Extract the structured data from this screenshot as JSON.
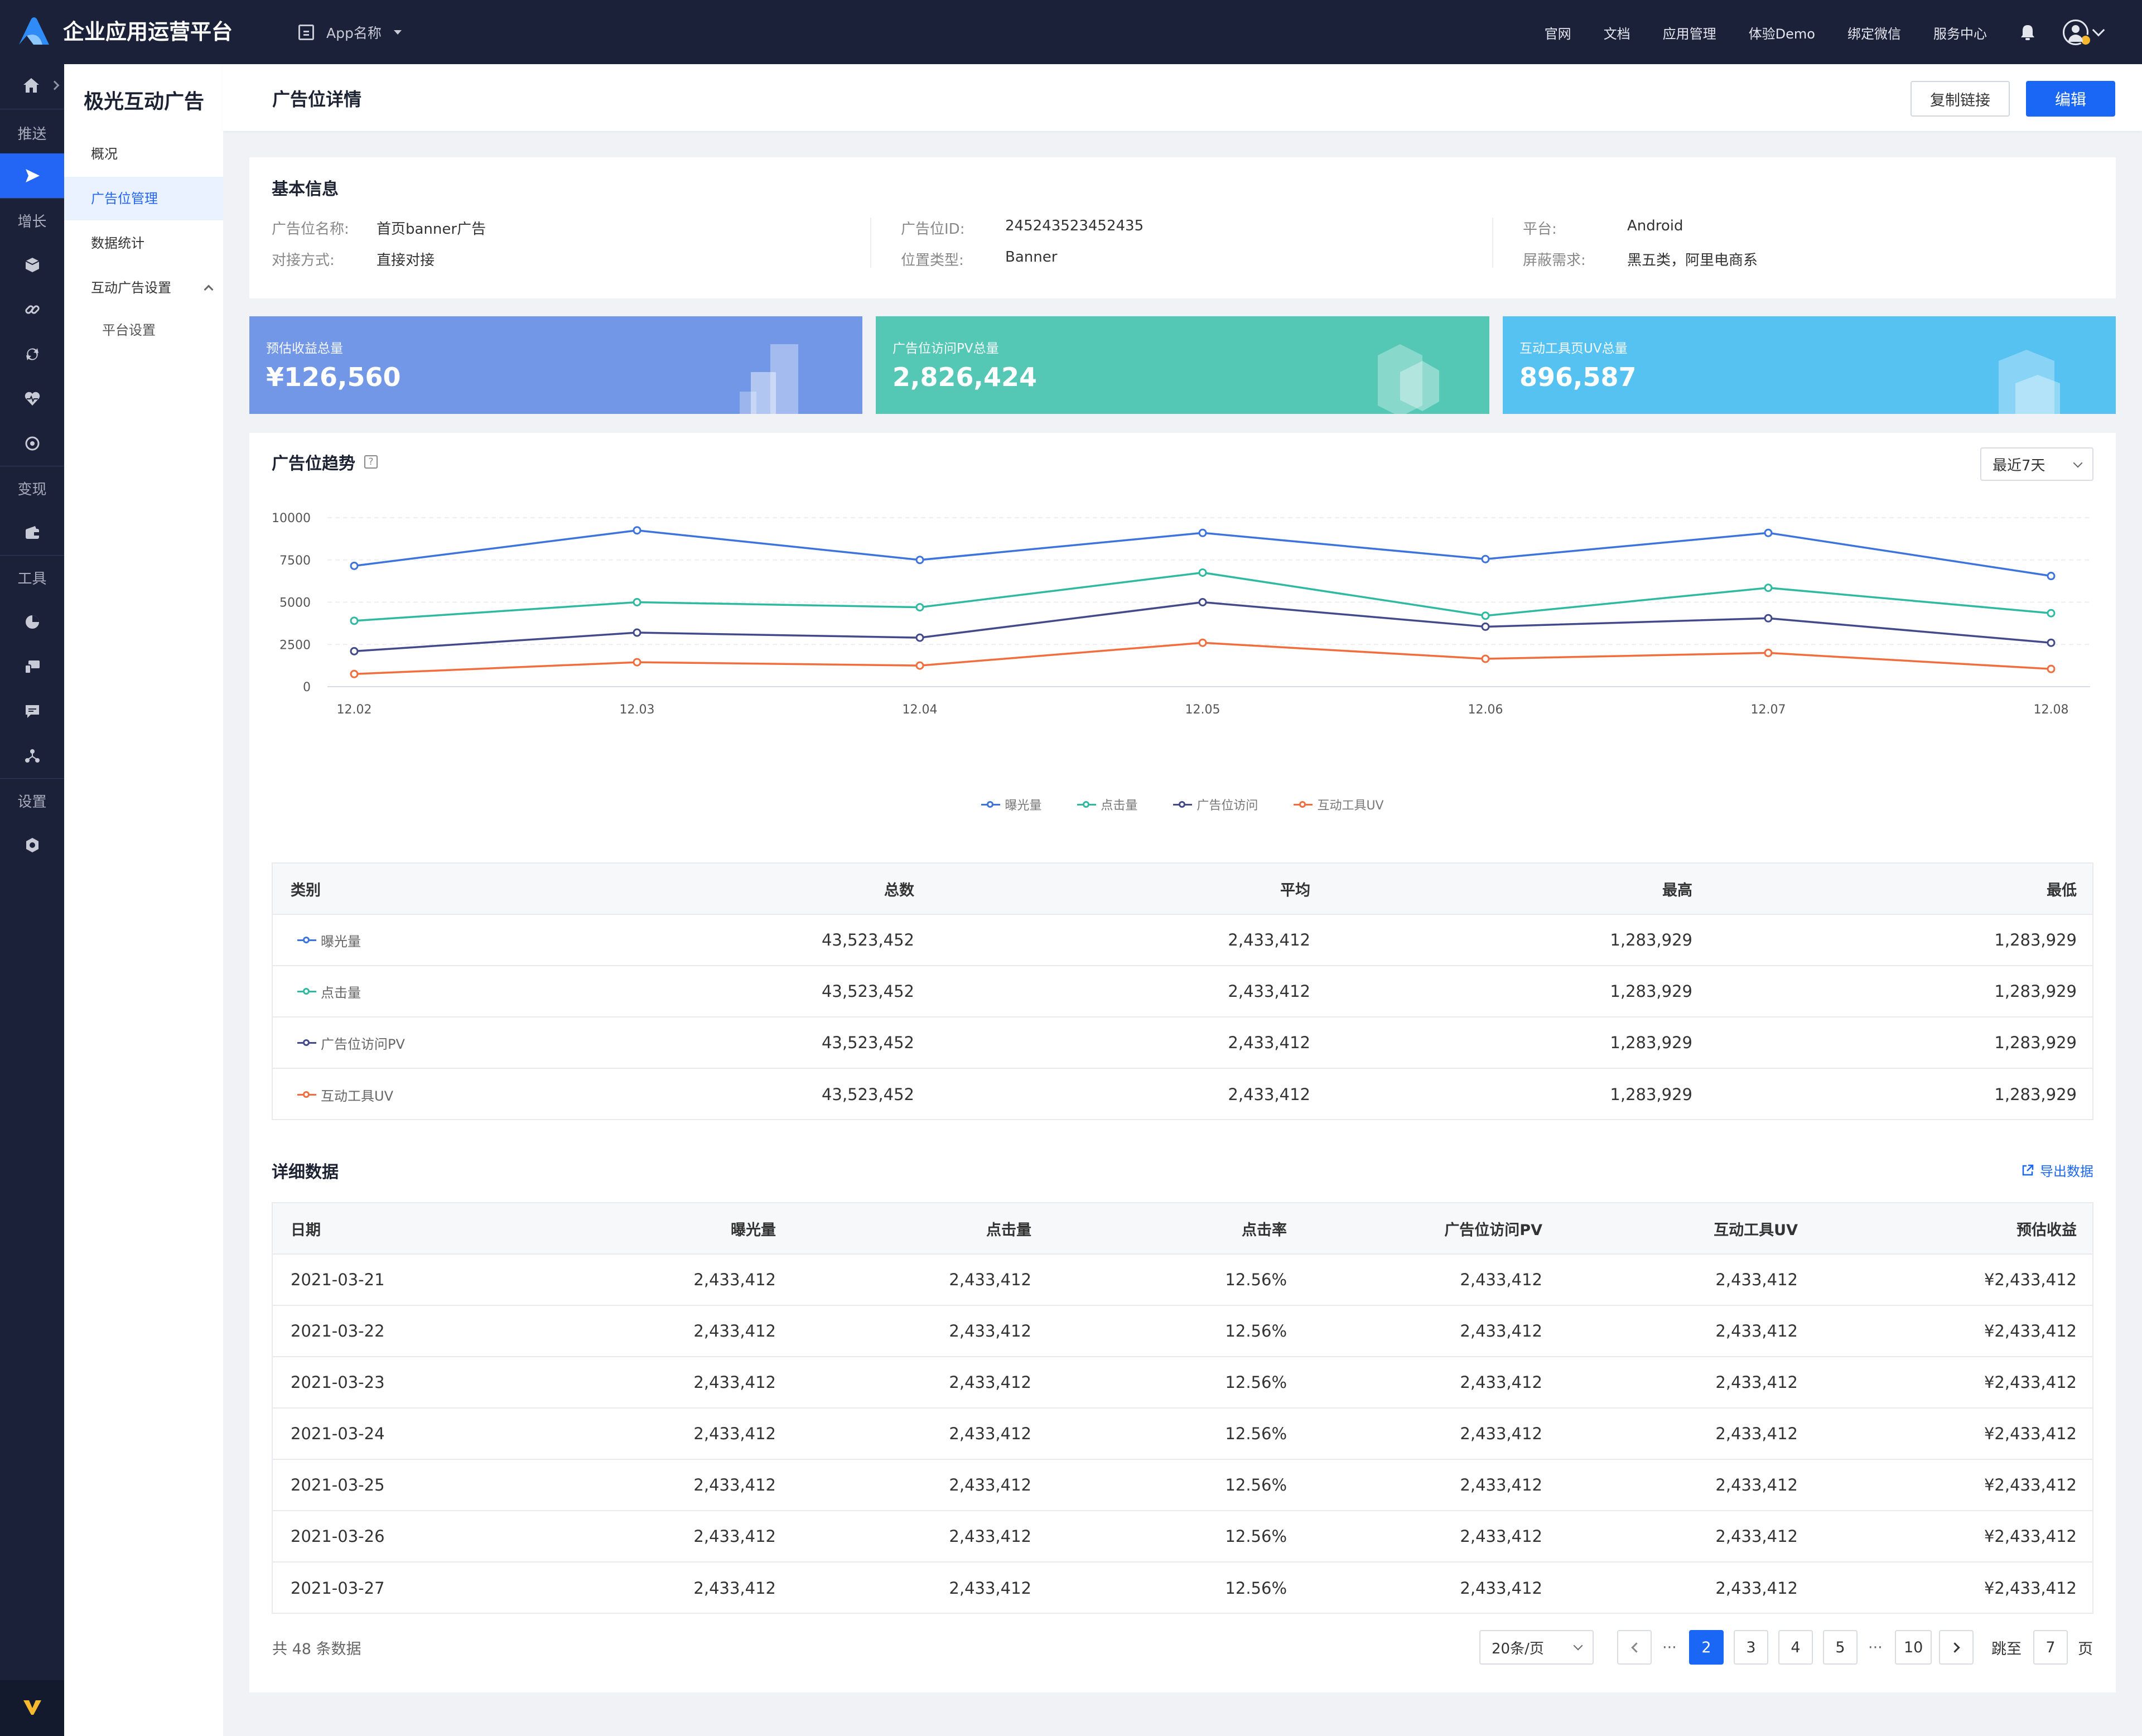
{
  "header": {
    "app_title": "企业应用运营平台",
    "app_switcher_label": "App名称",
    "nav": [
      "官网",
      "文档",
      "应用管理",
      "体验Demo",
      "绑定微信",
      "服务中心"
    ]
  },
  "rail": {
    "groups": [
      "推送",
      "增长",
      "变现",
      "工具",
      "设置"
    ]
  },
  "sidebar": {
    "title": "极光互动广告",
    "items": [
      {
        "label": "概况"
      },
      {
        "label": "广告位管理"
      },
      {
        "label": "数据统计"
      },
      {
        "label": "互动广告设置"
      },
      {
        "label": "平台设置"
      }
    ]
  },
  "page": {
    "title": "广告位详情",
    "copy_link_label": "复制链接",
    "edit_label": "编辑"
  },
  "basic_info": {
    "title": "基本信息",
    "fields": [
      {
        "label": "广告位名称:",
        "value": "首页banner广告"
      },
      {
        "label": "对接方式:",
        "value": "直接对接"
      },
      {
        "label": "广告位ID:",
        "value": "245243523452435"
      },
      {
        "label": "位置类型:",
        "value": "Banner"
      },
      {
        "label": "平台:",
        "value": "Android"
      },
      {
        "label": "屏蔽需求:",
        "value": "黑五类，阿里电商系"
      }
    ]
  },
  "stats": [
    {
      "label": "预估收益总量",
      "value": "¥126,560",
      "color": "#7297e6"
    },
    {
      "label": "广告位访问PV总量",
      "value": "2,826,424",
      "color": "#55c7b5"
    },
    {
      "label": "互动工具页UV总量",
      "value": "896,587",
      "color": "#56c2f2"
    }
  ],
  "trend": {
    "title": "广告位趋势",
    "range_label": "最近7天"
  },
  "chart_data": {
    "type": "line",
    "x": [
      "12.02",
      "12.03",
      "12.04",
      "12.05",
      "12.06",
      "12.07",
      "12.08"
    ],
    "ylim": [
      0,
      10000
    ],
    "yticks": [
      "10000",
      "7500",
      "5000",
      "2500",
      "0"
    ],
    "grid": true,
    "legend_position": "bottom-center",
    "series": [
      {
        "name": "曝光量",
        "color": "#3c73dc",
        "values": [
          7150,
          9250,
          7500,
          9100,
          7550,
          9100,
          6550
        ]
      },
      {
        "name": "点击量",
        "color": "#2fb9a0",
        "values": [
          3900,
          5000,
          4700,
          6750,
          4200,
          5850,
          4350
        ]
      },
      {
        "name": "广告位访问",
        "color": "#424a8c",
        "values": [
          2100,
          3200,
          2900,
          5000,
          3550,
          4050,
          2600
        ]
      },
      {
        "name": "互动工具UV",
        "color": "#f26d3d",
        "values": [
          750,
          1450,
          1250,
          2600,
          1650,
          2000,
          1050
        ]
      }
    ]
  },
  "summary_table": {
    "headers": [
      "类别",
      "总数",
      "平均",
      "最高",
      "最低"
    ],
    "rows": [
      {
        "category": "曝光量",
        "total": "43,523,452",
        "avg": "2,433,412",
        "max": "1,283,929",
        "min": "1,283,929",
        "color": "#3c73dc"
      },
      {
        "category": "点击量",
        "total": "43,523,452",
        "avg": "2,433,412",
        "max": "1,283,929",
        "min": "1,283,929",
        "color": "#2fb9a0"
      },
      {
        "category": "广告位访问PV",
        "total": "43,523,452",
        "avg": "2,433,412",
        "max": "1,283,929",
        "min": "1,283,929",
        "color": "#424a8c"
      },
      {
        "category": "互动工具UV",
        "total": "43,523,452",
        "avg": "2,433,412",
        "max": "1,283,929",
        "min": "1,283,929",
        "color": "#f26d3d"
      }
    ]
  },
  "detail": {
    "title": "详细数据",
    "export_label": "导出数据",
    "headers": [
      "日期",
      "曝光量",
      "点击量",
      "点击率",
      "广告位访问PV",
      "互动工具UV",
      "预估收益"
    ],
    "rows": [
      [
        "2021-03-21",
        "2,433,412",
        "2,433,412",
        "12.56%",
        "2,433,412",
        "2,433,412",
        "¥2,433,412"
      ],
      [
        "2021-03-22",
        "2,433,412",
        "2,433,412",
        "12.56%",
        "2,433,412",
        "2,433,412",
        "¥2,433,412"
      ],
      [
        "2021-03-23",
        "2,433,412",
        "2,433,412",
        "12.56%",
        "2,433,412",
        "2,433,412",
        "¥2,433,412"
      ],
      [
        "2021-03-24",
        "2,433,412",
        "2,433,412",
        "12.56%",
        "2,433,412",
        "2,433,412",
        "¥2,433,412"
      ],
      [
        "2021-03-25",
        "2,433,412",
        "2,433,412",
        "12.56%",
        "2,433,412",
        "2,433,412",
        "¥2,433,412"
      ],
      [
        "2021-03-26",
        "2,433,412",
        "2,433,412",
        "12.56%",
        "2,433,412",
        "2,433,412",
        "¥2,433,412"
      ],
      [
        "2021-03-27",
        "2,433,412",
        "2,433,412",
        "12.56%",
        "2,433,412",
        "2,433,412",
        "¥2,433,412"
      ]
    ]
  },
  "pagination": {
    "total_text": "共 48 条数据",
    "page_size_label": "20条/页",
    "pages": [
      "2",
      "3",
      "4",
      "5",
      "10"
    ],
    "current": "2",
    "ellipsis": "···",
    "jump_label": "跳至",
    "jump_value": "7",
    "page_suffix": "页"
  }
}
